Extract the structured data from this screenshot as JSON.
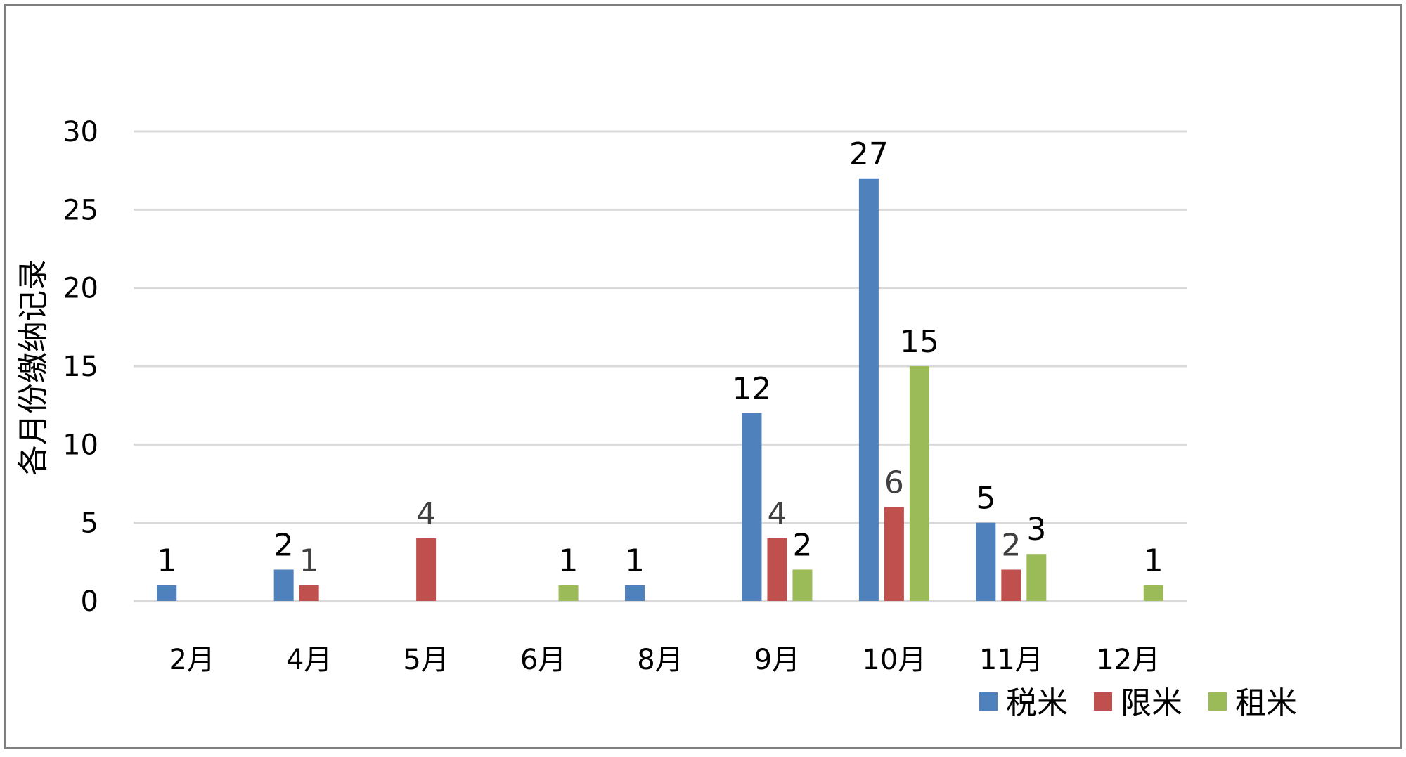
{
  "chart_data": {
    "type": "bar",
    "title": "",
    "xlabel": "",
    "ylabel": "各月份缴纳记录",
    "ylim": [
      0,
      30
    ],
    "yticks": [
      "0",
      "5",
      "10",
      "15",
      "20",
      "25",
      "30"
    ],
    "grid": true,
    "legend_position": "bottom-right",
    "categories": [
      "2月",
      "4月",
      "5月",
      "6月",
      "8月",
      "9月",
      "10月",
      "11月",
      "12月"
    ],
    "series": [
      {
        "name": "税米",
        "color": "#4f81bd",
        "label_color": "#000000",
        "values": [
          1,
          2,
          null,
          null,
          1,
          12,
          27,
          5,
          null
        ],
        "labels": [
          "1",
          "2",
          "",
          "",
          "1",
          "12",
          "27",
          "5",
          ""
        ]
      },
      {
        "name": "限米",
        "color": "#c0504d",
        "label_color": "#404040",
        "values": [
          null,
          1,
          4,
          null,
          null,
          4,
          6,
          2,
          null
        ],
        "labels": [
          "",
          "1",
          "4",
          "",
          "",
          "4",
          "6",
          "2",
          ""
        ]
      },
      {
        "name": "租米",
        "color": "#9bbb59",
        "label_color": "#000000",
        "values": [
          null,
          null,
          null,
          1,
          null,
          2,
          15,
          3,
          1
        ],
        "labels": [
          "",
          "",
          "",
          "1",
          "",
          "2",
          "15",
          "3",
          "1"
        ]
      }
    ]
  }
}
